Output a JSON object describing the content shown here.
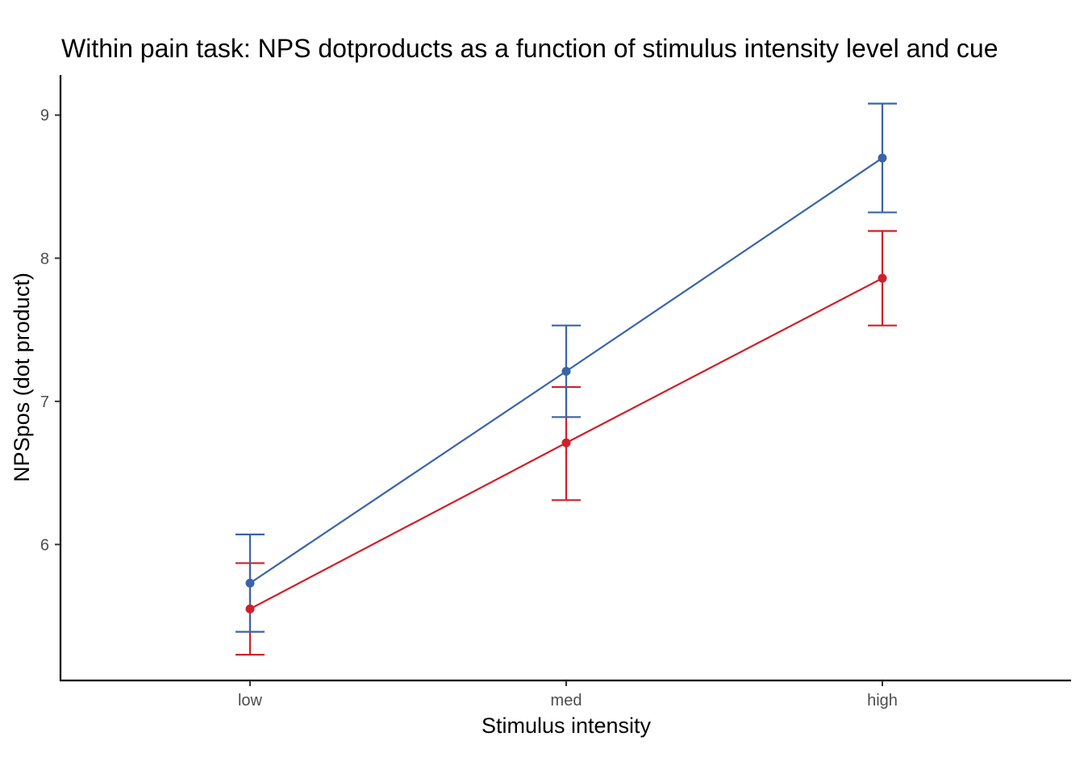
{
  "chart_data": {
    "type": "line",
    "title": "Within pain task: NPS dotproducts as a function of stimulus intensity level and cue",
    "xlabel": "Stimulus intensity",
    "ylabel": "NPSpos (dot product)",
    "categories": [
      "low",
      "med",
      "high"
    ],
    "ylim": [
      5.05,
      9.28
    ],
    "yticks": [
      6,
      7,
      8,
      9
    ],
    "grid": false,
    "legend": "none",
    "series": [
      {
        "color": "#3A64A8",
        "values": [
          5.73,
          7.21,
          8.7
        ],
        "error_low": [
          5.39,
          6.89,
          8.32
        ],
        "error_high": [
          6.07,
          7.53,
          9.08
        ]
      },
      {
        "color": "#D0202A",
        "values": [
          5.55,
          6.71,
          7.86
        ],
        "error_low": [
          5.23,
          6.31,
          7.53
        ],
        "error_high": [
          5.87,
          7.1,
          8.19
        ]
      }
    ]
  }
}
